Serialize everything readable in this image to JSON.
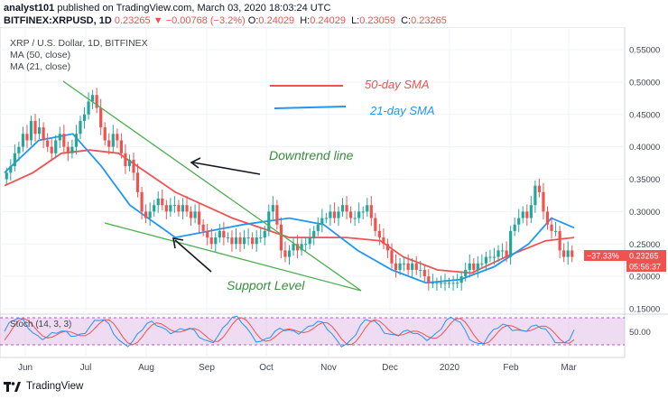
{
  "header": {
    "user": "analyst101",
    "published_text": "published on TradingView.com, March 03, 2020 18:03:24 UTC",
    "symbol": "BITFINEX:XRPUSD, 1D",
    "last": "0.23265",
    "change_arrow": "▼",
    "change": "−0.00768 (−3.2%)",
    "o_label": "O:",
    "o": "0.24029",
    "h_label": "H:",
    "h": "0.24029",
    "l_label": "L:",
    "l": "0.23059",
    "c_label": "C:",
    "c": "0.23265"
  },
  "legend": {
    "title": "XRP / U.S. Dollar, 1D, BITFINEX",
    "ma50": "MA (50, close)",
    "ma21": "MA (21, close)"
  },
  "annotations": {
    "sma50": "50-day SMA",
    "sma21": "21-day SMA",
    "downtrend": "Downtrend line",
    "support": "Support Level"
  },
  "price_axis": [
    "0.55000",
    "0.50000",
    "0.45000",
    "0.40000",
    "0.35000",
    "0.30000",
    "0.25000",
    "0.20000",
    "0.15000"
  ],
  "badges": {
    "pct": "−37.33%",
    "price": "0.23265",
    "countdown": "05:56:37"
  },
  "stoch": {
    "label": "Stoch (14, 3, 3)",
    "level": "50.00"
  },
  "time_axis": [
    "Jun",
    "Jul",
    "Aug",
    "Sep",
    "Oct",
    "Nov",
    "Dec",
    "2020",
    "Feb",
    "Mar"
  ],
  "footer": {
    "brand": "TradingView"
  },
  "colors": {
    "up": "#26a69a",
    "down": "#ef5350",
    "ma50": "#ef5350",
    "ma21": "#2196f3",
    "trend": "#4caf50",
    "stoch_k": "#2196f3",
    "stoch_d": "#ef5350",
    "band": "#e1bee7"
  },
  "chart_data": {
    "type": "candlestick",
    "ylim": [
      0.15,
      0.57
    ],
    "ticks_y": [
      0.55,
      0.5,
      0.45,
      0.4,
      0.35,
      0.3,
      0.25,
      0.2,
      0.15
    ],
    "closes": [
      0.36,
      0.37,
      0.39,
      0.4,
      0.42,
      0.41,
      0.44,
      0.42,
      0.43,
      0.41,
      0.4,
      0.39,
      0.41,
      0.42,
      0.4,
      0.39,
      0.4,
      0.42,
      0.44,
      0.45,
      0.47,
      0.48,
      0.46,
      0.43,
      0.41,
      0.4,
      0.42,
      0.41,
      0.39,
      0.37,
      0.38,
      0.36,
      0.33,
      0.3,
      0.29,
      0.3,
      0.31,
      0.32,
      0.31,
      0.3,
      0.31,
      0.31,
      0.3,
      0.31,
      0.3,
      0.29,
      0.3,
      0.28,
      0.27,
      0.26,
      0.25,
      0.26,
      0.27,
      0.26,
      0.26,
      0.25,
      0.26,
      0.25,
      0.26,
      0.26,
      0.25,
      0.26,
      0.26,
      0.27,
      0.3,
      0.31,
      0.28,
      0.24,
      0.23,
      0.24,
      0.25,
      0.24,
      0.25,
      0.25,
      0.26,
      0.27,
      0.28,
      0.29,
      0.29,
      0.3,
      0.29,
      0.3,
      0.31,
      0.3,
      0.29,
      0.29,
      0.3,
      0.3,
      0.31,
      0.29,
      0.27,
      0.26,
      0.25,
      0.24,
      0.22,
      0.21,
      0.22,
      0.22,
      0.21,
      0.22,
      0.21,
      0.21,
      0.2,
      0.19,
      0.19,
      0.19,
      0.19,
      0.19,
      0.19,
      0.19,
      0.19,
      0.2,
      0.21,
      0.22,
      0.21,
      0.22,
      0.22,
      0.23,
      0.23,
      0.23,
      0.24,
      0.24,
      0.23,
      0.27,
      0.28,
      0.29,
      0.3,
      0.29,
      0.31,
      0.34,
      0.33,
      0.3,
      0.28,
      0.27,
      0.27,
      0.24,
      0.23,
      0.24,
      0.23
    ],
    "ma50": [
      [
        0,
        0.34
      ],
      [
        0.05,
        0.36
      ],
      [
        0.1,
        0.39
      ],
      [
        0.15,
        0.395
      ],
      [
        0.2,
        0.39
      ],
      [
        0.3,
        0.33
      ],
      [
        0.4,
        0.29
      ],
      [
        0.5,
        0.26
      ],
      [
        0.6,
        0.26
      ],
      [
        0.66,
        0.255
      ],
      [
        0.7,
        0.23
      ],
      [
        0.76,
        0.21
      ],
      [
        0.82,
        0.205
      ],
      [
        0.88,
        0.23
      ],
      [
        0.95,
        0.255
      ],
      [
        1.0,
        0.26
      ]
    ],
    "ma21": [
      [
        0,
        0.36
      ],
      [
        0.06,
        0.41
      ],
      [
        0.12,
        0.42
      ],
      [
        0.17,
        0.37
      ],
      [
        0.22,
        0.31
      ],
      [
        0.3,
        0.26
      ],
      [
        0.36,
        0.27
      ],
      [
        0.42,
        0.28
      ],
      [
        0.5,
        0.29
      ],
      [
        0.56,
        0.28
      ],
      [
        0.62,
        0.24
      ],
      [
        0.68,
        0.21
      ],
      [
        0.74,
        0.19
      ],
      [
        0.8,
        0.195
      ],
      [
        0.86,
        0.215
      ],
      [
        0.92,
        0.25
      ],
      [
        0.96,
        0.29
      ],
      [
        1.0,
        0.275
      ]
    ]
  }
}
